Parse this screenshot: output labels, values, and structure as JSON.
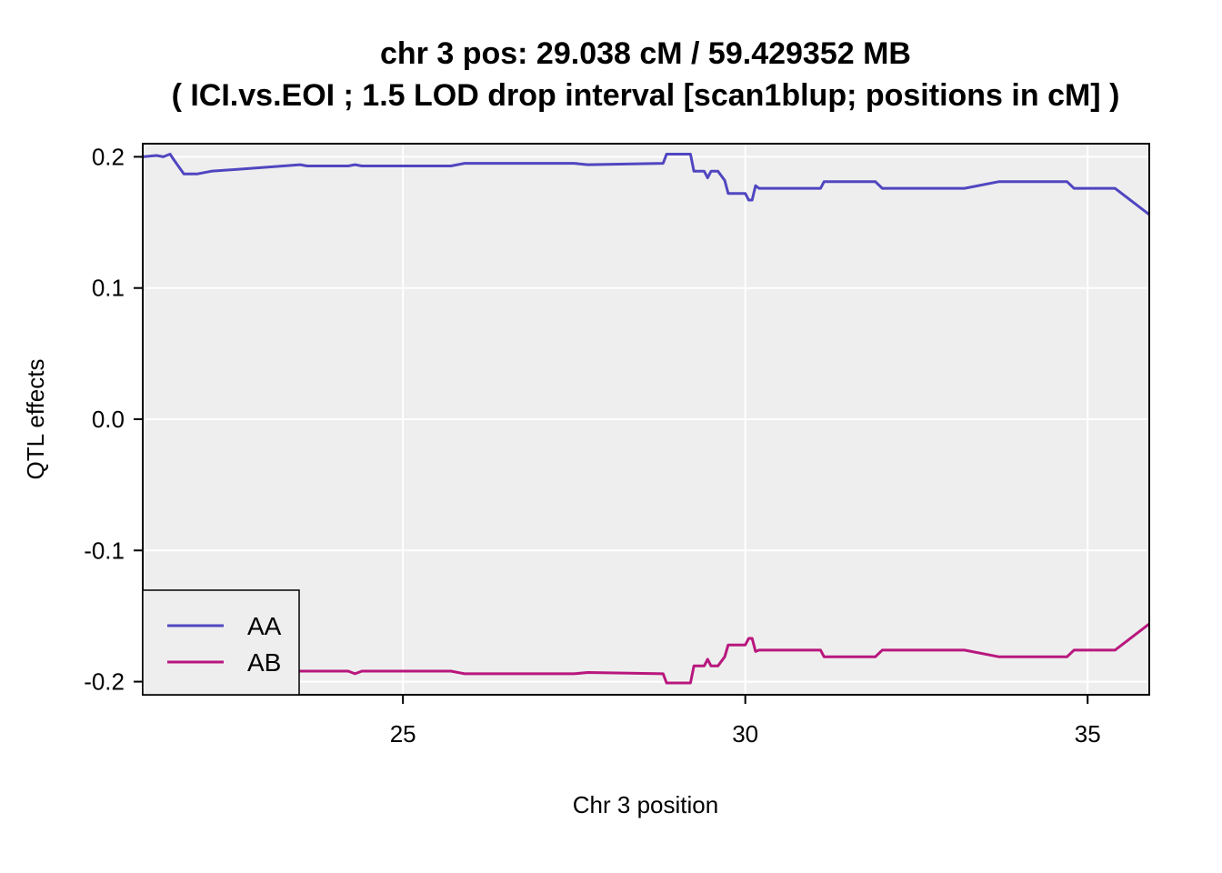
{
  "chart_data": {
    "type": "line",
    "title": "chr 3 pos:  29.038 cM / 59.429352 MB",
    "subtitle": "( ICI.vs.EOI ; 1.5 LOD drop interval [scan1blup; positions in cM] )",
    "xlabel": "Chr 3 position",
    "ylabel": "QTL effects",
    "xlim": [
      21.2,
      35.9
    ],
    "ylim": [
      -0.21,
      0.21
    ],
    "xticks": [
      25,
      30,
      35
    ],
    "xtick_labels": [
      "25",
      "30",
      "35"
    ],
    "yticks": [
      0.2,
      0.1,
      0.0,
      -0.1,
      -0.2
    ],
    "ytick_labels": [
      "0.2",
      "0.1",
      "0.0",
      "-0.1",
      "-0.2"
    ],
    "grid": true,
    "legend_position": "bottom-left",
    "background_color": "#eeeeee",
    "series": [
      {
        "name": "AA",
        "color": "#5046c0",
        "x": [
          21.2,
          21.4,
          21.5,
          21.6,
          21.65,
          21.8,
          22.0,
          22.2,
          23.5,
          23.6,
          24.2,
          24.3,
          24.4,
          25.7,
          25.9,
          27.0,
          27.5,
          27.7,
          28.8,
          28.85,
          29.2,
          29.25,
          29.4,
          29.45,
          29.5,
          29.6,
          29.7,
          29.75,
          30.0,
          30.05,
          30.1,
          30.15,
          30.2,
          31.1,
          31.15,
          31.9,
          32.0,
          33.2,
          33.7,
          34.7,
          34.8,
          35.4,
          35.9
        ],
        "y": [
          0.2,
          0.201,
          0.2,
          0.202,
          0.198,
          0.187,
          0.187,
          0.189,
          0.194,
          0.193,
          0.193,
          0.194,
          0.193,
          0.193,
          0.195,
          0.195,
          0.195,
          0.194,
          0.195,
          0.202,
          0.202,
          0.189,
          0.189,
          0.184,
          0.189,
          0.189,
          0.182,
          0.172,
          0.172,
          0.167,
          0.167,
          0.178,
          0.176,
          0.176,
          0.181,
          0.181,
          0.176,
          0.176,
          0.181,
          0.181,
          0.176,
          0.176,
          0.156
        ]
      },
      {
        "name": "AB",
        "color": "#b8177d",
        "x": [
          21.2,
          21.4,
          21.5,
          21.6,
          21.65,
          21.8,
          22.0,
          22.2,
          23.5,
          23.6,
          24.2,
          24.3,
          24.4,
          25.7,
          25.9,
          27.0,
          27.5,
          27.7,
          28.8,
          28.85,
          29.2,
          29.25,
          29.4,
          29.45,
          29.5,
          29.6,
          29.7,
          29.75,
          30.0,
          30.05,
          30.1,
          30.15,
          30.2,
          31.1,
          31.15,
          31.9,
          32.0,
          33.2,
          33.7,
          34.7,
          34.8,
          35.4,
          35.9
        ],
        "y": [
          -0.2,
          -0.201,
          -0.2,
          -0.202,
          -0.198,
          -0.187,
          -0.187,
          -0.189,
          -0.192,
          -0.192,
          -0.192,
          -0.194,
          -0.192,
          -0.192,
          -0.194,
          -0.194,
          -0.194,
          -0.193,
          -0.194,
          -0.201,
          -0.201,
          -0.188,
          -0.188,
          -0.183,
          -0.188,
          -0.188,
          -0.181,
          -0.172,
          -0.172,
          -0.167,
          -0.167,
          -0.177,
          -0.176,
          -0.176,
          -0.181,
          -0.181,
          -0.176,
          -0.176,
          -0.181,
          -0.181,
          -0.176,
          -0.176,
          -0.156
        ]
      }
    ]
  }
}
